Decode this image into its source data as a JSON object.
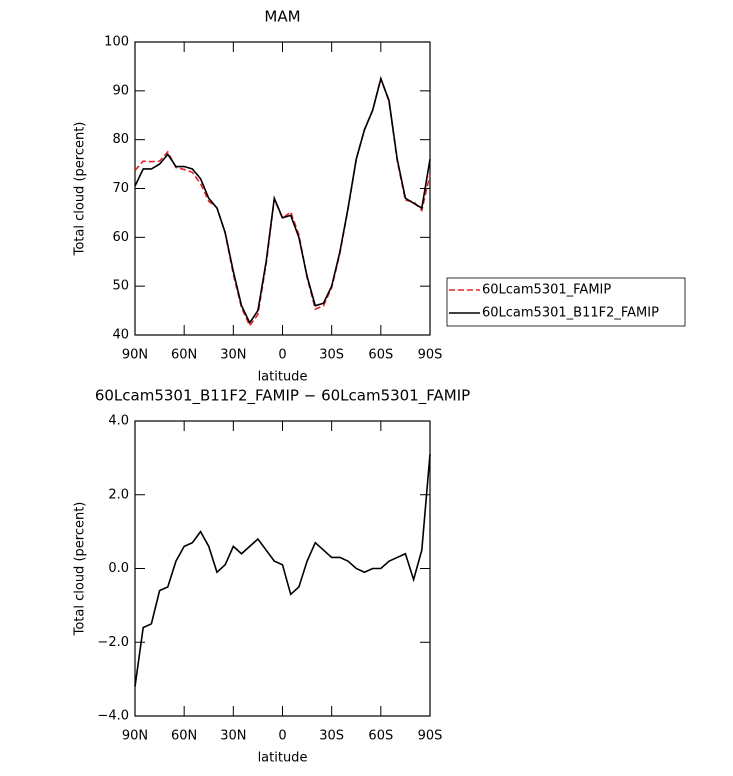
{
  "chart_data": [
    {
      "type": "line",
      "title": "MAM",
      "xlabel": "latitude",
      "ylabel": "Total cloud (percent)",
      "x": [
        90,
        85,
        80,
        75,
        70,
        65,
        60,
        55,
        50,
        45,
        40,
        35,
        30,
        25,
        20,
        15,
        10,
        5,
        0,
        -5,
        -10,
        -15,
        -20,
        -25,
        -30,
        -35,
        -40,
        -45,
        -50,
        -55,
        -60,
        -65,
        -70,
        -75,
        -80,
        -85,
        -90
      ],
      "xlim": [
        90,
        -90
      ],
      "xticks": [
        {
          "value": 90,
          "label": "90N"
        },
        {
          "value": 60,
          "label": "60N"
        },
        {
          "value": 30,
          "label": "30N"
        },
        0,
        {
          "value": -30,
          "label": "30S"
        },
        {
          "value": -60,
          "label": "60S"
        },
        {
          "value": -90,
          "label": "90S"
        }
      ],
      "ylim": [
        40,
        100
      ],
      "yticks": [
        40,
        50,
        60,
        70,
        80,
        90,
        100
      ],
      "series": [
        {
          "name": "60Lcam5301_FAMIP",
          "color": "#e8202a",
          "line_style": "dashed",
          "values": [
            73.7,
            75.6,
            75.5,
            75.6,
            77.5,
            74.3,
            73.9,
            73.3,
            71,
            67.4,
            66.1,
            60.9,
            52.4,
            45.6,
            41.9,
            44.2,
            54.5,
            67.8,
            63.9,
            65.2,
            60.5,
            51.8,
            45.3,
            46,
            49.7,
            56.7,
            65.8,
            76,
            82.1,
            86,
            92.5,
            87.8,
            75.7,
            67.6,
            67.3,
            65.5,
            72.9
          ]
        },
        {
          "name": "60Lcam5301_B11F2_FAMIP",
          "color": "#000000",
          "line_style": "solid",
          "values": [
            70.5,
            74,
            74,
            75,
            77,
            74.5,
            74.5,
            74,
            72,
            68,
            66,
            61,
            53,
            46,
            42.5,
            45,
            55,
            68,
            64,
            64.5,
            60,
            52,
            46,
            46.5,
            50,
            57,
            66,
            76,
            82,
            86,
            92.5,
            88,
            76,
            68,
            67,
            66,
            76
          ]
        }
      ]
    },
    {
      "type": "line",
      "title": "60Lcam5301_B11F2_FAMIP − 60Lcam5301_FAMIP",
      "xlabel": "latitude",
      "ylabel": "Total cloud (percent)",
      "x": [
        90,
        85,
        80,
        75,
        70,
        65,
        60,
        55,
        50,
        45,
        40,
        35,
        30,
        25,
        20,
        15,
        10,
        5,
        0,
        -5,
        -10,
        -15,
        -20,
        -25,
        -30,
        -35,
        -40,
        -45,
        -50,
        -55,
        -60,
        -65,
        -70,
        -75,
        -80,
        -85,
        -90
      ],
      "xlim": [
        90,
        -90
      ],
      "xticks": [
        {
          "value": 90,
          "label": "90N"
        },
        {
          "value": 60,
          "label": "60N"
        },
        {
          "value": 30,
          "label": "30N"
        },
        0,
        {
          "value": -30,
          "label": "30S"
        },
        {
          "value": -60,
          "label": "60S"
        },
        {
          "value": -90,
          "label": "90S"
        }
      ],
      "ylim": [
        -4,
        4
      ],
      "yticks": [
        {
          "value": -4,
          "label": "−4.0"
        },
        {
          "value": -2,
          "label": "−2.0"
        },
        {
          "value": 0,
          "label": "0.0"
        },
        {
          "value": 2,
          "label": "2.0"
        },
        {
          "value": 4,
          "label": "4.0"
        }
      ],
      "series": [
        {
          "color": "#000000",
          "line_style": "solid",
          "values": [
            -3.2,
            -1.6,
            -1.5,
            -0.6,
            -0.5,
            0.2,
            0.6,
            0.7,
            1.0,
            0.6,
            -0.1,
            0.1,
            0.6,
            0.4,
            0.6,
            0.8,
            0.5,
            0.2,
            0.1,
            -0.7,
            -0.5,
            0.2,
            0.7,
            0.5,
            0.3,
            0.3,
            0.2,
            0.0,
            -0.1,
            0.0,
            0.0,
            0.2,
            0.3,
            0.4,
            -0.3,
            0.5,
            3.1
          ]
        }
      ]
    }
  ]
}
